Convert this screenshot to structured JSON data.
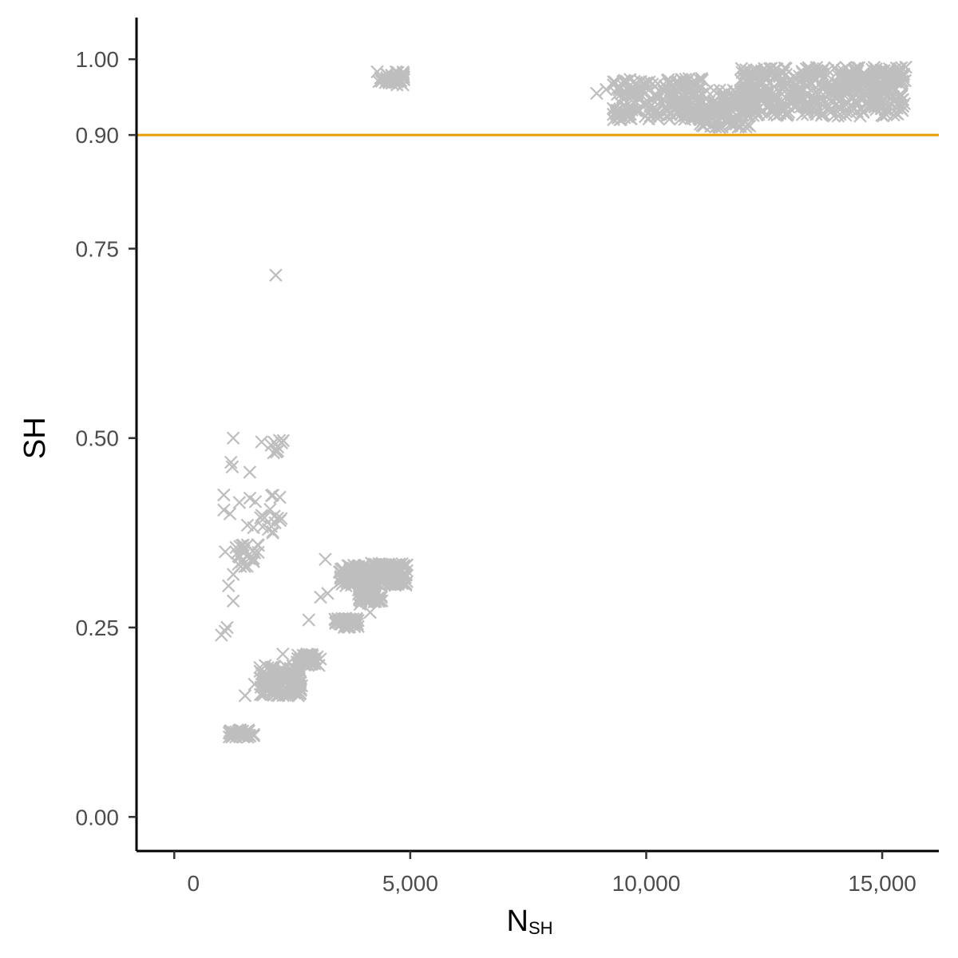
{
  "chart_data": {
    "type": "scatter",
    "title": "",
    "xlabel": "N",
    "xlabel_subscript": "SH",
    "ylabel": "SH",
    "xlim": [
      -800,
      16200
    ],
    "ylim": [
      -0.045,
      1.055
    ],
    "x_ticks": [
      0,
      5000,
      10000,
      15000
    ],
    "x_tick_labels": [
      "0",
      "5,000",
      "10,000",
      "15,000"
    ],
    "y_ticks": [
      0,
      0.25,
      0.5,
      0.75,
      0.9,
      1.0
    ],
    "y_tick_labels": [
      "0.00",
      "0.25",
      "0.50",
      "0.75",
      "0.90",
      "1.00"
    ],
    "grid": false,
    "legend": "none",
    "marker": "x",
    "point_color": "#bebebe",
    "reference_line": {
      "y": 0.9,
      "color": "#e69f00"
    },
    "series": [
      {
        "clusters": [
          {
            "x": [
              4300,
              4900
            ],
            "y": [
              0.965,
              0.985
            ],
            "n": 40
          },
          {
            "x": [
              9300,
              11200
            ],
            "y": [
              0.92,
              0.975
            ],
            "n": 200
          },
          {
            "x": [
              11000,
              12200
            ],
            "y": [
              0.91,
              0.96
            ],
            "n": 150
          },
          {
            "x": [
              12000,
              15500
            ],
            "y": [
              0.925,
              0.99
            ],
            "n": 500
          },
          {
            "x": [
              3500,
              4950
            ],
            "y": [
              0.305,
              0.335
            ],
            "n": 200
          },
          {
            "x": [
              3900,
              4400
            ],
            "y": [
              0.28,
              0.305
            ],
            "n": 60
          },
          {
            "x": [
              3400,
              3900
            ],
            "y": [
              0.25,
              0.262
            ],
            "n": 60
          },
          {
            "x": [
              2600,
              3100
            ],
            "y": [
              0.2,
              0.215
            ],
            "n": 50
          },
          {
            "x": [
              1800,
              2700
            ],
            "y": [
              0.16,
              0.2
            ],
            "n": 150
          },
          {
            "x": [
              1150,
              1700
            ],
            "y": [
              0.105,
              0.115
            ],
            "n": 40
          },
          {
            "x": [
              1300,
              1800
            ],
            "y": [
              0.33,
              0.36
            ],
            "n": 25
          },
          {
            "x": [
              1600,
              2300
            ],
            "y": [
              0.37,
              0.43
            ],
            "n": 20
          },
          {
            "x": [
              2000,
              2400
            ],
            "y": [
              0.48,
              0.5
            ],
            "n": 10
          }
        ],
        "points": [
          [
            2150,
            0.715
          ],
          [
            1250,
            0.5
          ],
          [
            1200,
            0.468
          ],
          [
            1230,
            0.462
          ],
          [
            1600,
            0.455
          ],
          [
            1850,
            0.495
          ],
          [
            1050,
            0.425
          ],
          [
            1050,
            0.405
          ],
          [
            1180,
            0.4
          ],
          [
            1380,
            0.415
          ],
          [
            1550,
            0.385
          ],
          [
            1080,
            0.35
          ],
          [
            1250,
            0.32
          ],
          [
            1150,
            0.305
          ],
          [
            1250,
            0.285
          ],
          [
            1120,
            0.25
          ],
          [
            1080,
            0.245
          ],
          [
            1000,
            0.24
          ],
          [
            3200,
            0.34
          ],
          [
            2850,
            0.26
          ],
          [
            3250,
            0.295
          ],
          [
            3100,
            0.29
          ],
          [
            3600,
            0.25
          ],
          [
            2300,
            0.215
          ],
          [
            8950,
            0.955
          ],
          [
            9300,
            0.935
          ],
          [
            9150,
            0.96
          ],
          [
            9500,
            0.95
          ],
          [
            1700,
            0.175
          ],
          [
            1500,
            0.16
          ],
          [
            4150,
            0.27
          ],
          [
            3700,
            0.32
          ]
        ]
      }
    ]
  }
}
